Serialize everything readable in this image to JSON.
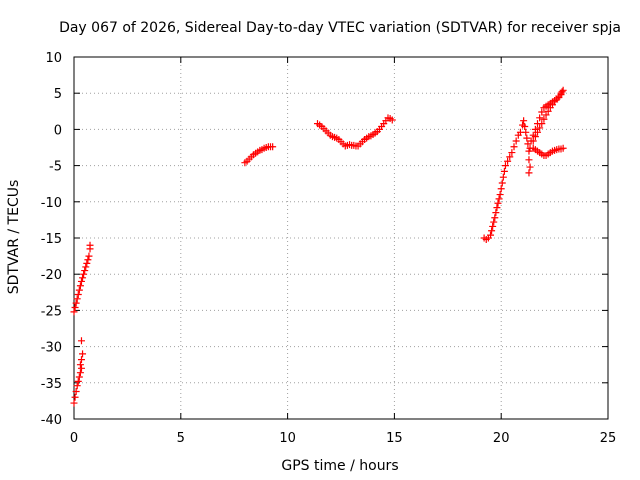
{
  "chart_data": {
    "type": "scatter",
    "title": "Day 067 of 2026, Sidereal Day-to-day VTEC variation (SDTVAR) for receiver spja",
    "xlabel": "GPS time / hours",
    "ylabel": "SDTVAR / TECUs",
    "xlim": [
      0,
      25
    ],
    "ylim": [
      -40,
      10
    ],
    "xticks": [
      0,
      5,
      10,
      15,
      20,
      25
    ],
    "yticks": [
      -40,
      -35,
      -30,
      -25,
      -20,
      -15,
      -10,
      -5,
      0,
      5,
      10
    ],
    "grid": true,
    "legend": "none",
    "marker": "+",
    "color": "#ff0000",
    "series": [
      {
        "points": [
          [
            0.0,
            -37.8
          ],
          [
            0.05,
            -37.0
          ],
          [
            0.1,
            -36.2
          ],
          [
            0.15,
            -35.4
          ],
          [
            0.2,
            -34.8
          ],
          [
            0.25,
            -34.2
          ],
          [
            0.3,
            -33.6
          ],
          [
            0.35,
            -33.0
          ],
          [
            0.3,
            -32.5
          ],
          [
            0.35,
            -31.8
          ],
          [
            0.4,
            -31.0
          ],
          [
            0.35,
            -29.2
          ],
          [
            0.0,
            -25.2
          ],
          [
            0.05,
            -24.6
          ],
          [
            0.1,
            -24.0
          ],
          [
            0.15,
            -23.4
          ],
          [
            0.2,
            -22.8
          ],
          [
            0.25,
            -22.2
          ],
          [
            0.3,
            -21.6
          ],
          [
            0.35,
            -21.0
          ],
          [
            0.4,
            -20.5
          ],
          [
            0.45,
            -20.0
          ],
          [
            0.5,
            -19.5
          ],
          [
            0.55,
            -19.0
          ],
          [
            0.6,
            -18.5
          ],
          [
            0.65,
            -18.0
          ],
          [
            0.7,
            -17.5
          ],
          [
            0.75,
            -16.5
          ],
          [
            0.75,
            -16.0
          ],
          [
            8.0,
            -4.6
          ],
          [
            8.1,
            -4.4
          ],
          [
            8.2,
            -4.1
          ],
          [
            8.3,
            -3.8
          ],
          [
            8.4,
            -3.5
          ],
          [
            8.5,
            -3.3
          ],
          [
            8.6,
            -3.1
          ],
          [
            8.7,
            -2.9
          ],
          [
            8.8,
            -2.8
          ],
          [
            8.9,
            -2.6
          ],
          [
            9.0,
            -2.5
          ],
          [
            9.1,
            -2.4
          ],
          [
            9.2,
            -2.4
          ],
          [
            9.3,
            -2.4
          ],
          [
            11.4,
            0.8
          ],
          [
            11.5,
            0.6
          ],
          [
            11.6,
            0.4
          ],
          [
            11.7,
            0.1
          ],
          [
            11.8,
            -0.2
          ],
          [
            11.9,
            -0.5
          ],
          [
            12.0,
            -0.8
          ],
          [
            12.1,
            -1.0
          ],
          [
            12.2,
            -1.1
          ],
          [
            12.3,
            -1.2
          ],
          [
            12.4,
            -1.4
          ],
          [
            12.5,
            -1.7
          ],
          [
            12.6,
            -2.0
          ],
          [
            12.7,
            -2.3
          ],
          [
            12.8,
            -2.2
          ],
          [
            12.9,
            -2.1
          ],
          [
            13.0,
            -2.2
          ],
          [
            13.1,
            -2.2
          ],
          [
            13.2,
            -2.3
          ],
          [
            13.3,
            -2.3
          ],
          [
            13.4,
            -2.0
          ],
          [
            13.5,
            -1.7
          ],
          [
            13.6,
            -1.4
          ],
          [
            13.7,
            -1.2
          ],
          [
            13.8,
            -1.0
          ],
          [
            13.9,
            -0.9
          ],
          [
            14.0,
            -0.7
          ],
          [
            14.1,
            -0.5
          ],
          [
            14.2,
            -0.3
          ],
          [
            14.3,
            0.0
          ],
          [
            14.4,
            0.4
          ],
          [
            14.5,
            0.8
          ],
          [
            14.6,
            1.2
          ],
          [
            14.7,
            1.6
          ],
          [
            14.8,
            1.5
          ],
          [
            14.9,
            1.3
          ],
          [
            19.2,
            -15.0
          ],
          [
            19.3,
            -15.2
          ],
          [
            19.4,
            -15.0
          ],
          [
            19.5,
            -14.6
          ],
          [
            19.55,
            -14.0
          ],
          [
            19.6,
            -13.4
          ],
          [
            19.65,
            -12.8
          ],
          [
            19.7,
            -12.2
          ],
          [
            19.75,
            -11.5
          ],
          [
            19.8,
            -10.8
          ],
          [
            19.85,
            -10.2
          ],
          [
            19.9,
            -9.6
          ],
          [
            19.95,
            -9.0
          ],
          [
            20.0,
            -8.2
          ],
          [
            20.05,
            -7.4
          ],
          [
            20.1,
            -6.6
          ],
          [
            20.15,
            -5.8
          ],
          [
            20.2,
            -5.0
          ],
          [
            20.3,
            -4.4
          ],
          [
            20.4,
            -3.8
          ],
          [
            20.5,
            -3.2
          ],
          [
            20.6,
            -2.4
          ],
          [
            20.7,
            -1.6
          ],
          [
            20.8,
            -0.8
          ],
          [
            20.9,
            -0.4
          ],
          [
            21.0,
            0.6
          ],
          [
            21.05,
            1.2
          ],
          [
            21.1,
            0.4
          ],
          [
            21.15,
            -0.4
          ],
          [
            21.2,
            -1.2
          ],
          [
            21.25,
            -2.0
          ],
          [
            21.3,
            -3.0
          ],
          [
            21.3,
            -4.2
          ],
          [
            21.35,
            -5.2
          ],
          [
            21.3,
            -6.0
          ],
          [
            21.35,
            -2.6
          ],
          [
            21.4,
            -1.6
          ],
          [
            21.5,
            -0.8
          ],
          [
            21.6,
            0.0
          ],
          [
            21.7,
            0.8
          ],
          [
            21.8,
            1.6
          ],
          [
            21.9,
            2.4
          ],
          [
            22.0,
            3.0
          ],
          [
            22.1,
            3.2
          ],
          [
            22.2,
            3.4
          ],
          [
            22.3,
            3.6
          ],
          [
            22.4,
            3.8
          ],
          [
            22.5,
            4.0
          ],
          [
            22.6,
            4.2
          ],
          [
            22.7,
            4.4
          ],
          [
            22.8,
            4.8
          ],
          [
            22.85,
            5.2
          ],
          [
            22.9,
            5.4
          ],
          [
            21.5,
            -1.6
          ],
          [
            21.6,
            -1.0
          ],
          [
            21.7,
            -0.4
          ],
          [
            21.8,
            0.2
          ],
          [
            21.9,
            0.8
          ],
          [
            22.0,
            1.4
          ],
          [
            22.1,
            2.0
          ],
          [
            22.2,
            2.5
          ],
          [
            22.3,
            3.0
          ],
          [
            22.4,
            3.4
          ],
          [
            22.5,
            3.8
          ],
          [
            22.6,
            4.2
          ],
          [
            22.7,
            4.6
          ],
          [
            22.8,
            5.0
          ],
          [
            21.5,
            -2.6
          ],
          [
            21.6,
            -2.8
          ],
          [
            21.7,
            -3.0
          ],
          [
            21.8,
            -3.2
          ],
          [
            21.9,
            -3.4
          ],
          [
            22.0,
            -3.6
          ],
          [
            22.1,
            -3.6
          ],
          [
            22.2,
            -3.4
          ],
          [
            22.3,
            -3.2
          ],
          [
            22.4,
            -3.0
          ],
          [
            22.5,
            -2.9
          ],
          [
            22.6,
            -2.8
          ],
          [
            22.7,
            -2.7
          ],
          [
            22.8,
            -2.7
          ],
          [
            22.9,
            -2.6
          ]
        ]
      }
    ]
  }
}
